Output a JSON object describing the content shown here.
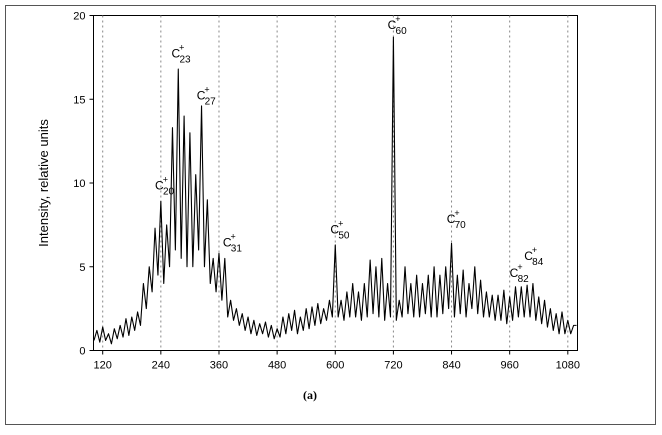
{
  "chart_data": {
    "type": "line",
    "y_label": "Intensity, relative units",
    "caption": "(a)",
    "xlim": [
      101,
      1100
    ],
    "ylim": [
      0,
      20
    ],
    "xticks": [
      120,
      240,
      360,
      480,
      600,
      720,
      840,
      960,
      1080
    ],
    "yticks": [
      0,
      5,
      10,
      15,
      20
    ],
    "grid": true,
    "color": "#000000",
    "x": [
      102,
      108,
      114,
      120,
      126,
      132,
      138,
      144,
      150,
      156,
      162,
      168,
      174,
      180,
      186,
      192,
      198,
      204,
      210,
      216,
      222,
      228,
      234,
      240,
      246,
      252,
      258,
      264,
      270,
      276,
      282,
      288,
      294,
      300,
      306,
      312,
      318,
      324,
      330,
      336,
      342,
      348,
      354,
      360,
      366,
      372,
      378,
      384,
      390,
      396,
      402,
      408,
      414,
      420,
      426,
      432,
      438,
      444,
      450,
      456,
      462,
      468,
      474,
      480,
      486,
      492,
      498,
      504,
      510,
      516,
      522,
      528,
      534,
      540,
      546,
      552,
      558,
      564,
      570,
      576,
      582,
      588,
      594,
      600,
      606,
      612,
      618,
      624,
      630,
      636,
      642,
      648,
      654,
      660,
      666,
      672,
      678,
      684,
      690,
      696,
      702,
      708,
      714,
      720,
      726,
      732,
      738,
      744,
      750,
      756,
      762,
      768,
      774,
      780,
      786,
      792,
      798,
      804,
      810,
      816,
      822,
      828,
      834,
      840,
      846,
      852,
      858,
      864,
      870,
      876,
      882,
      888,
      894,
      900,
      906,
      912,
      918,
      924,
      930,
      936,
      942,
      948,
      954,
      960,
      966,
      972,
      978,
      984,
      990,
      996,
      1002,
      1008,
      1014,
      1020,
      1026,
      1032,
      1038,
      1044,
      1050,
      1056,
      1062,
      1068,
      1074,
      1080,
      1086,
      1092,
      1098
    ],
    "values": [
      0.6,
      1.2,
      0.5,
      1.4,
      0.6,
      1.0,
      0.4,
      1.3,
      0.7,
      1.5,
      0.8,
      1.9,
      0.9,
      2.0,
      1.2,
      2.3,
      1.5,
      4.0,
      2.5,
      5.0,
      3.5,
      7.3,
      4.5,
      8.9,
      4.0,
      7.5,
      5.0,
      13.3,
      6.0,
      16.8,
      5.5,
      14.0,
      5.0,
      13.0,
      5.0,
      10.5,
      6.0,
      14.6,
      5.0,
      9.0,
      4.0,
      5.5,
      3.5,
      5.8,
      3.0,
      5.5,
      2.0,
      3.0,
      1.8,
      2.5,
      1.5,
      2.2,
      1.2,
      2.0,
      1.0,
      1.8,
      0.9,
      1.6,
      1.0,
      1.7,
      0.8,
      1.5,
      0.7,
      1.3,
      0.8,
      2.0,
      1.0,
      2.2,
      1.2,
      2.4,
      1.0,
      2.0,
      1.2,
      2.5,
      1.3,
      2.6,
      1.5,
      2.8,
      1.6,
      2.5,
      1.8,
      3.0,
      2.0,
      6.3,
      2.0,
      3.0,
      1.8,
      3.5,
      2.0,
      4.0,
      2.0,
      3.5,
      1.8,
      4.0,
      2.0,
      5.4,
      2.2,
      5.0,
      2.0,
      5.5,
      1.8,
      4.0,
      2.0,
      18.7,
      1.8,
      3.0,
      2.0,
      5.0,
      2.2,
      4.0,
      2.0,
      4.5,
      2.0,
      4.0,
      2.2,
      4.5,
      2.0,
      5.0,
      2.0,
      4.5,
      2.2,
      5.0,
      2.5,
      6.4,
      2.0,
      4.5,
      2.2,
      4.8,
      2.0,
      4.0,
      2.5,
      5.0,
      2.2,
      4.2,
      2.0,
      3.5,
      2.0,
      3.3,
      1.8,
      3.3,
      1.8,
      3.6,
      1.6,
      3.2,
      1.8,
      3.8,
      2.0,
      3.8,
      2.0,
      3.9,
      2.0,
      4.0,
      1.8,
      3.2,
      1.6,
      3.0,
      1.4,
      2.5,
      1.2,
      2.2,
      1.0,
      2.3,
      1.0,
      1.8,
      1.0,
      1.5,
      1.5
    ],
    "annotations": [
      {
        "text": "C",
        "sub": "20",
        "sup": "+",
        "x": 228,
        "y": 9.6
      },
      {
        "text": "C",
        "sub": "23",
        "sup": "+",
        "x": 262,
        "y": 17.5
      },
      {
        "text": "C",
        "sub": "27",
        "sup": "+",
        "x": 314,
        "y": 15.0
      },
      {
        "text": "C",
        "sub": "31",
        "sup": "+",
        "x": 368,
        "y": 6.2
      },
      {
        "text": "C",
        "sub": "50",
        "sup": "+",
        "x": 590,
        "y": 7.0
      },
      {
        "text": "C",
        "sub": "60",
        "sup": "+",
        "x": 708,
        "y": 19.2
      },
      {
        "text": "C",
        "sub": "70",
        "sup": "+",
        "x": 830,
        "y": 7.6
      },
      {
        "text": "C",
        "sub": "82",
        "sup": "+",
        "x": 960,
        "y": 4.4
      },
      {
        "text": "C",
        "sub": "84",
        "sup": "+",
        "x": 990,
        "y": 5.4
      }
    ]
  }
}
